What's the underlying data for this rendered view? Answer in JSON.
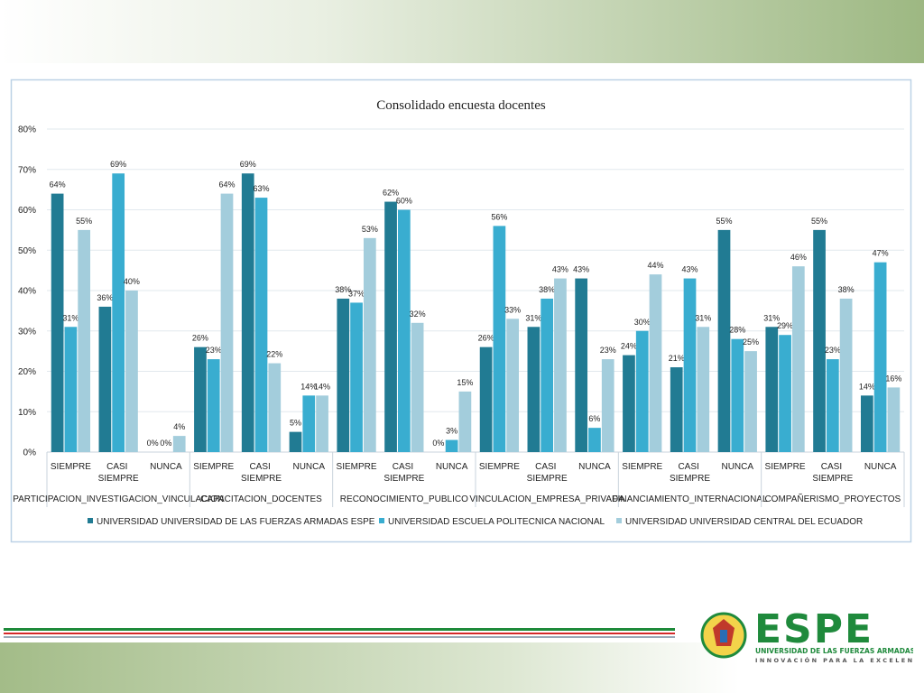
{
  "chart_data": {
    "type": "bar",
    "title": "Consolidado encuesta docentes",
    "groups": [
      "PARTICIPACION_INVESTIGACION_VINCULACION",
      "CAPACITACION_DOCENTES",
      "RECONOCIMIENTO_PUBLICO",
      "VINCULACION_EMPRESA_PRIVADA",
      "FINANCIAMIENTO_INTERNACIONAL",
      "COMPAÑERISMO_PROYECTOS"
    ],
    "categories": [
      "SIEMPRE",
      "CASI SIEMPRE",
      "NUNCA",
      "SIEMPRE",
      "CASI SIEMPRE",
      "NUNCA",
      "SIEMPRE",
      "CASI SIEMPRE",
      "NUNCA",
      "SIEMPRE",
      "CASI SIEMPRE",
      "NUNCA",
      "SIEMPRE",
      "CASI SIEMPRE",
      "NUNCA",
      "SIEMPRE",
      "CASI SIEMPRE",
      "NUNCA"
    ],
    "series": [
      {
        "name": "UNIVERSIDAD UNIVERSIDAD DE LAS FUERZAS ARMADAS ESPE",
        "color": "#217b93",
        "values": [
          64,
          36,
          0,
          26,
          69,
          5,
          38,
          62,
          0,
          26,
          31,
          43,
          24,
          21,
          55,
          31,
          55,
          14
        ],
        "value_labels": [
          "64%",
          "36%",
          "0%",
          "26%",
          "69%",
          "5%",
          "38%",
          "62%",
          "0%",
          "26%",
          "31%",
          "43%",
          "24%",
          "21%",
          "55%",
          "31%",
          "55%",
          "14%"
        ]
      },
      {
        "name": "UNIVERSIDAD ESCUELA POLITECNICA NACIONAL",
        "color": "#39add0",
        "values": [
          31,
          69,
          0,
          23,
          63,
          14,
          37,
          60,
          3,
          56,
          38,
          6,
          30,
          43,
          28,
          29,
          23,
          47
        ],
        "value_labels": [
          "31%",
          "69%",
          "0%",
          "23%",
          "63%",
          "14%",
          "37%",
          "60%",
          "3%",
          "56%",
          "38%",
          "6%",
          "30%",
          "43%",
          "28%",
          "29%",
          "23%",
          "47%"
        ]
      },
      {
        "name": "UNIVERSIDAD UNIVERSIDAD CENTRAL DEL ECUADOR",
        "color": "#a3cddc",
        "values": [
          55,
          40,
          4,
          64,
          22,
          14,
          53,
          32,
          15,
          33,
          43,
          23,
          44,
          31,
          25,
          46,
          38,
          16
        ],
        "value_labels": [
          "55%",
          "40%",
          "4%",
          "64%",
          "22%",
          "14%",
          "53%",
          "32%",
          "15%",
          "33%",
          "43%",
          "23%",
          "44%",
          "31%",
          "25%",
          "46%",
          "38%",
          "16%"
        ]
      }
    ],
    "ylim": [
      0,
      80
    ],
    "yticks": [
      {
        "value": 0,
        "label": "0%"
      },
      {
        "value": 10,
        "label": "10%"
      },
      {
        "value": 20,
        "label": "20%"
      },
      {
        "value": 30,
        "label": "30%"
      },
      {
        "value": 40,
        "label": "40%"
      },
      {
        "value": 50,
        "label": "50%"
      },
      {
        "value": 60,
        "label": "60%"
      },
      {
        "value": 70,
        "label": "70%"
      },
      {
        "value": 80,
        "label": "80%"
      }
    ],
    "grid": true,
    "legend": "bottom"
  },
  "logo": {
    "name": "ESPE",
    "subtitle": "UNIVERSIDAD DE LAS FUERZAS ARMADAS",
    "tagline": "INNOVACIÓN PARA LA EXCELENCIA"
  }
}
